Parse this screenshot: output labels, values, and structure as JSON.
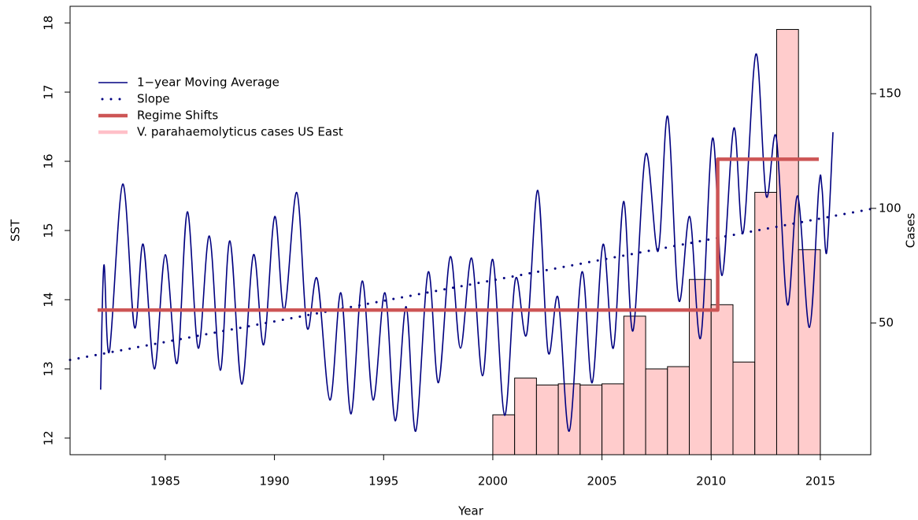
{
  "chart_data": [
    {
      "type": "line",
      "x_label": "Year",
      "y_label": "SST",
      "xlim": [
        1980.64,
        2017.31
      ],
      "ylim": [
        11.76,
        18.24
      ],
      "xticks": [
        1985,
        1990,
        1995,
        2000,
        2005,
        2010,
        2015
      ],
      "yticks": [
        12,
        13,
        14,
        15,
        16,
        17,
        18
      ],
      "legend": "top-left",
      "series": [
        {
          "name": "1−year Moving Average",
          "color": "#000080",
          "style": "solid",
          "linewidth": 1.6,
          "smooth": true,
          "x": [
            1982.04,
            1982.19,
            1982.44,
            1983.05,
            1983.59,
            1983.99,
            1984.5,
            1985.0,
            1985.54,
            1986.01,
            1986.51,
            1987.02,
            1987.52,
            1987.96,
            1988.5,
            1989.04,
            1989.51,
            1990.01,
            1990.45,
            1991.02,
            1991.49,
            1991.96,
            1992.54,
            1993.04,
            1993.51,
            1994.02,
            1994.52,
            1995.06,
            1995.53,
            1996.03,
            1996.47,
            1997.04,
            1997.51,
            1998.05,
            1998.52,
            1999.03,
            1999.53,
            2000.0,
            2000.54,
            2001.04,
            2001.55,
            2002.06,
            2002.53,
            2002.99,
            2003.5,
            2004.08,
            2004.55,
            2005.05,
            2005.52,
            2005.99,
            2006.42,
            2007.0,
            2007.57,
            2008.01,
            2008.51,
            2009.02,
            2009.52,
            2010.06,
            2010.5,
            2011.04,
            2011.47,
            2012.05,
            2012.52,
            2012.98,
            2013.49,
            2013.96,
            2014.5,
            2014.93,
            2015.08,
            2015.29,
            2015.58
          ],
          "values": [
            12.7,
            14.5,
            13.25,
            15.67,
            13.6,
            14.8,
            13.0,
            14.65,
            13.08,
            15.27,
            13.3,
            14.92,
            12.98,
            14.85,
            12.78,
            14.65,
            13.35,
            15.2,
            13.85,
            15.55,
            13.6,
            14.3,
            12.55,
            14.1,
            12.35,
            14.27,
            12.55,
            14.1,
            12.25,
            13.9,
            12.1,
            14.4,
            12.8,
            14.62,
            13.3,
            14.6,
            12.9,
            14.58,
            12.33,
            14.3,
            13.5,
            15.58,
            13.25,
            14.03,
            12.1,
            14.4,
            12.8,
            14.8,
            13.3,
            15.42,
            13.55,
            16.1,
            14.7,
            16.65,
            14.0,
            15.2,
            13.45,
            16.33,
            14.35,
            16.48,
            14.97,
            17.55,
            15.5,
            16.35,
            13.93,
            15.5,
            13.6,
            15.62,
            15.6,
            14.68,
            16.42
          ]
        },
        {
          "name": "Slope",
          "color": "#000080",
          "style": "dotted",
          "linewidth": 3,
          "x": [
            1980.64,
            2017.31
          ],
          "values": [
            13.13,
            15.31
          ]
        },
        {
          "name": "Regime Shifts",
          "color": "#cd5555",
          "style": "solid",
          "linewidth": 4.5,
          "x": [
            1981.9,
            2010.3,
            2010.3,
            2014.93
          ],
          "values": [
            13.85,
            13.85,
            16.03,
            16.03
          ]
        }
      ]
    },
    {
      "type": "histogram",
      "name": "V. parahaemolyticus cases US East",
      "y2_label": "Cases",
      "color": "#ffcccc",
      "edgecolor": "#000000",
      "legend_color": "#ffc0c8",
      "y2lim": [
        -7.4,
        188.1
      ],
      "y2ticks": [
        50,
        100,
        150
      ],
      "bins": [
        2000,
        2001,
        2002,
        2003,
        2004,
        2005,
        2006,
        2007,
        2008,
        2009,
        2010,
        2011,
        2012,
        2013,
        2014,
        2015
      ],
      "values": [
        10,
        26,
        23,
        23.5,
        23,
        23.5,
        53,
        30,
        31,
        69,
        58,
        33,
        107,
        178,
        82
      ]
    }
  ]
}
